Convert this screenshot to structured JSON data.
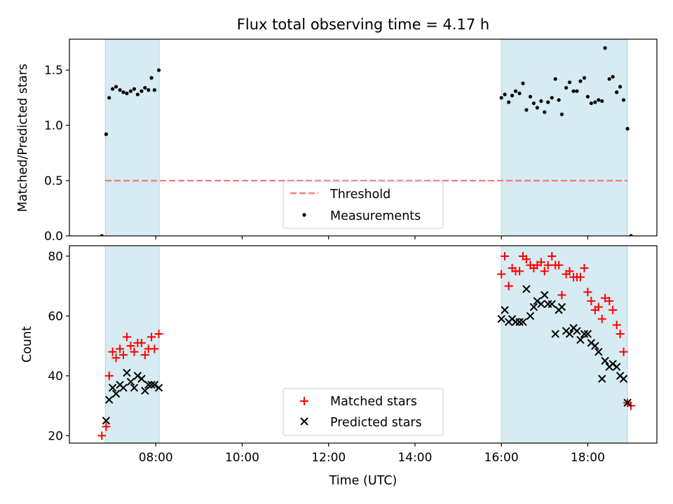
{
  "title": "Flux total observing time = 4.17 h",
  "colors": {
    "shade": "#add8e6",
    "threshold": "#f08080",
    "measurements": "#000000",
    "matched": "#ff0000",
    "predicted": "#000000"
  },
  "chart_data": [
    {
      "type": "scatter",
      "panel": "top",
      "title": "Flux total observing time = 4.17 h",
      "xlabel": "",
      "ylabel": "Matched/Predicted stars",
      "xlim": [
        6.0,
        19.6
      ],
      "ylim": [
        0,
        1.78
      ],
      "yticks": [
        0.0,
        0.5,
        1.0,
        1.5
      ],
      "ytick_labels": [
        "0.0",
        "0.5",
        "1.0",
        "1.5"
      ],
      "legend": "lower-center",
      "shaded_intervals": [
        [
          6.83,
          8.08
        ],
        [
          16.0,
          18.92
        ]
      ],
      "series": [
        {
          "name": "Threshold",
          "kind": "dashed-line",
          "points": [
            [
              6.83,
              0.5
            ],
            [
              18.92,
              0.5
            ]
          ]
        },
        {
          "name": "Measurements",
          "kind": "dots",
          "points": [
            [
              6.75,
              0.0
            ],
            [
              6.85,
              0.92
            ],
            [
              6.92,
              1.25
            ],
            [
              7.0,
              1.33
            ],
            [
              7.08,
              1.35
            ],
            [
              7.17,
              1.32
            ],
            [
              7.25,
              1.3
            ],
            [
              7.33,
              1.29
            ],
            [
              7.42,
              1.31
            ],
            [
              7.5,
              1.33
            ],
            [
              7.58,
              1.28
            ],
            [
              7.67,
              1.31
            ],
            [
              7.75,
              1.34
            ],
            [
              7.83,
              1.32
            ],
            [
              7.9,
              1.43
            ],
            [
              7.97,
              1.32
            ],
            [
              8.07,
              1.5
            ],
            [
              16.0,
              1.25
            ],
            [
              16.08,
              1.28
            ],
            [
              16.17,
              1.21
            ],
            [
              16.25,
              1.27
            ],
            [
              16.33,
              1.31
            ],
            [
              16.42,
              1.29
            ],
            [
              16.5,
              1.38
            ],
            [
              16.58,
              1.14
            ],
            [
              16.67,
              1.26
            ],
            [
              16.75,
              1.2
            ],
            [
              16.83,
              1.16
            ],
            [
              16.92,
              1.22
            ],
            [
              17.0,
              1.12
            ],
            [
              17.08,
              1.21
            ],
            [
              17.17,
              1.25
            ],
            [
              17.25,
              1.42
            ],
            [
              17.33,
              1.23
            ],
            [
              17.4,
              1.1
            ],
            [
              17.5,
              1.34
            ],
            [
              17.58,
              1.39
            ],
            [
              17.67,
              1.31
            ],
            [
              17.75,
              1.31
            ],
            [
              17.83,
              1.4
            ],
            [
              17.92,
              1.43
            ],
            [
              18.0,
              1.26
            ],
            [
              18.08,
              1.2
            ],
            [
              18.17,
              1.21
            ],
            [
              18.25,
              1.23
            ],
            [
              18.33,
              1.22
            ],
            [
              18.4,
              1.7
            ],
            [
              18.5,
              1.42
            ],
            [
              18.58,
              1.44
            ],
            [
              18.67,
              1.3
            ],
            [
              18.75,
              1.35
            ],
            [
              18.83,
              1.23
            ],
            [
              18.92,
              0.97
            ],
            [
              19.0,
              0.0
            ]
          ]
        }
      ]
    },
    {
      "type": "scatter",
      "panel": "bottom",
      "xlabel": "Time (UTC)",
      "ylabel": "Count",
      "xlim": [
        6.0,
        19.6
      ],
      "ylim": [
        17.5,
        83.5
      ],
      "xticks": [
        8,
        10,
        12,
        14,
        16,
        18
      ],
      "xtick_labels": [
        "08:00",
        "10:00",
        "12:00",
        "14:00",
        "16:00",
        "18:00"
      ],
      "yticks": [
        20,
        40,
        60,
        80
      ],
      "ytick_labels": [
        "20",
        "40",
        "60",
        "80"
      ],
      "legend": "lower-center",
      "shaded_intervals": [
        [
          6.83,
          8.08
        ],
        [
          16.0,
          18.92
        ]
      ],
      "series": [
        {
          "name": "Matched stars",
          "kind": "plus",
          "points": [
            [
              6.75,
              20
            ],
            [
              6.85,
              23
            ],
            [
              6.92,
              40
            ],
            [
              7.0,
              48
            ],
            [
              7.08,
              46
            ],
            [
              7.17,
              49
            ],
            [
              7.25,
              47
            ],
            [
              7.33,
              53
            ],
            [
              7.42,
              50
            ],
            [
              7.5,
              48
            ],
            [
              7.58,
              51
            ],
            [
              7.67,
              51
            ],
            [
              7.75,
              47
            ],
            [
              7.83,
              49
            ],
            [
              7.9,
              53
            ],
            [
              7.97,
              49
            ],
            [
              8.07,
              54
            ],
            [
              16.0,
              74
            ],
            [
              16.08,
              80
            ],
            [
              16.17,
              70
            ],
            [
              16.25,
              76
            ],
            [
              16.33,
              75
            ],
            [
              16.42,
              75
            ],
            [
              16.5,
              80
            ],
            [
              16.58,
              79
            ],
            [
              16.67,
              77
            ],
            [
              16.75,
              76
            ],
            [
              16.83,
              77
            ],
            [
              16.92,
              78
            ],
            [
              17.0,
              75
            ],
            [
              17.08,
              77
            ],
            [
              17.17,
              80
            ],
            [
              17.25,
              77
            ],
            [
              17.33,
              77
            ],
            [
              17.4,
              67
            ],
            [
              17.5,
              74
            ],
            [
              17.58,
              75
            ],
            [
              17.67,
              73
            ],
            [
              17.75,
              73
            ],
            [
              17.83,
              73
            ],
            [
              17.92,
              76
            ],
            [
              18.0,
              68
            ],
            [
              18.08,
              65
            ],
            [
              18.17,
              62
            ],
            [
              18.25,
              63
            ],
            [
              18.33,
              59
            ],
            [
              18.4,
              66
            ],
            [
              18.5,
              65
            ],
            [
              18.58,
              62
            ],
            [
              18.67,
              57
            ],
            [
              18.75,
              54
            ],
            [
              18.83,
              48
            ],
            [
              18.92,
              31
            ],
            [
              19.0,
              30
            ]
          ]
        },
        {
          "name": "Predicted stars",
          "kind": "cross",
          "points": [
            [
              6.85,
              25
            ],
            [
              6.92,
              32
            ],
            [
              7.0,
              36
            ],
            [
              7.08,
              34
            ],
            [
              7.17,
              37
            ],
            [
              7.25,
              36
            ],
            [
              7.33,
              41
            ],
            [
              7.42,
              38
            ],
            [
              7.5,
              36
            ],
            [
              7.58,
              40
            ],
            [
              7.67,
              39
            ],
            [
              7.75,
              35
            ],
            [
              7.83,
              37
            ],
            [
              7.9,
              37
            ],
            [
              7.97,
              37
            ],
            [
              8.07,
              36
            ],
            [
              16.0,
              59
            ],
            [
              16.08,
              62
            ],
            [
              16.17,
              58
            ],
            [
              16.25,
              59
            ],
            [
              16.33,
              58
            ],
            [
              16.42,
              58
            ],
            [
              16.5,
              58
            ],
            [
              16.58,
              69
            ],
            [
              16.67,
              60
            ],
            [
              16.75,
              63
            ],
            [
              16.83,
              65
            ],
            [
              16.92,
              64
            ],
            [
              17.0,
              67
            ],
            [
              17.08,
              64
            ],
            [
              17.17,
              64
            ],
            [
              17.25,
              54
            ],
            [
              17.33,
              62
            ],
            [
              17.4,
              63
            ],
            [
              17.5,
              55
            ],
            [
              17.58,
              54
            ],
            [
              17.67,
              56
            ],
            [
              17.75,
              55
            ],
            [
              17.83,
              52
            ],
            [
              17.92,
              54
            ],
            [
              18.0,
              54
            ],
            [
              18.08,
              51
            ],
            [
              18.17,
              50
            ],
            [
              18.25,
              48
            ],
            [
              18.33,
              39
            ],
            [
              18.4,
              45
            ],
            [
              18.5,
              43
            ],
            [
              18.58,
              44
            ],
            [
              18.67,
              43
            ],
            [
              18.75,
              40
            ],
            [
              18.83,
              39
            ],
            [
              18.92,
              31
            ]
          ]
        }
      ]
    }
  ]
}
